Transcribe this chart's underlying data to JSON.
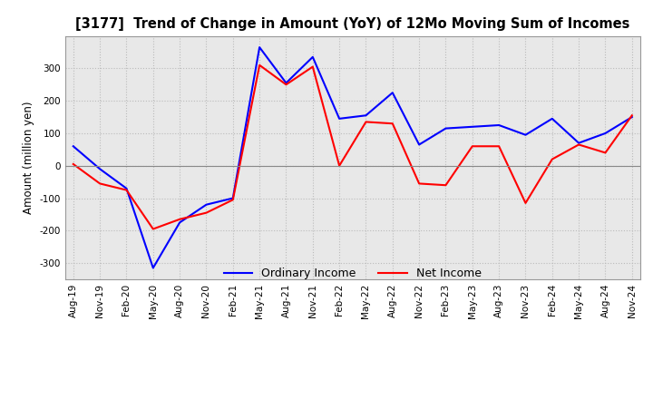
{
  "title": "[3177]  Trend of Change in Amount (YoY) of 12Mo Moving Sum of Incomes",
  "ylabel": "Amount (million yen)",
  "x_labels": [
    "Aug-19",
    "Nov-19",
    "Feb-20",
    "May-20",
    "Aug-20",
    "Nov-20",
    "Feb-21",
    "May-21",
    "Aug-21",
    "Nov-21",
    "Feb-22",
    "May-22",
    "Aug-22",
    "Nov-22",
    "Feb-23",
    "May-23",
    "Aug-23",
    "Nov-23",
    "Feb-24",
    "May-24",
    "Aug-24",
    "Nov-24"
  ],
  "ordinary_income": [
    60,
    -10,
    -70,
    -315,
    -175,
    -120,
    -100,
    365,
    255,
    335,
    145,
    155,
    225,
    65,
    115,
    120,
    125,
    95,
    145,
    70,
    100,
    150
  ],
  "net_income": [
    5,
    -55,
    -75,
    -195,
    -165,
    -145,
    -105,
    310,
    250,
    305,
    0,
    135,
    130,
    -55,
    -60,
    60,
    60,
    -115,
    20,
    65,
    40,
    155
  ],
  "ordinary_color": "#0000FF",
  "net_color": "#FF0000",
  "ylim": [
    -350,
    400
  ],
  "yticks": [
    -300,
    -200,
    -100,
    0,
    100,
    200,
    300
  ],
  "grid_color": "#bbbbbb",
  "bg_color": "#ffffff",
  "plot_bg_color": "#e8e8e8"
}
